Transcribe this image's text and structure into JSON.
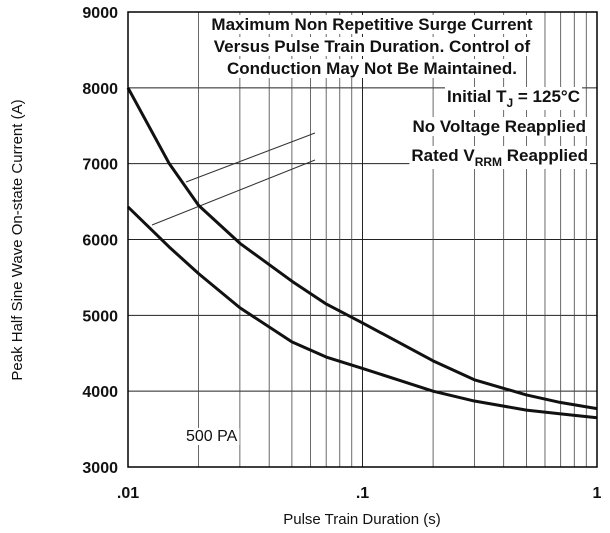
{
  "chart_data": {
    "type": "line",
    "title": [
      "Maximum Non Repetitive Surge Current",
      "Versus Pulse Train Duration. Control of",
      "Conduction May Not Be Maintained."
    ],
    "annotations": {
      "condition": [
        "Initial T",
        "J",
        " = 125°C"
      ],
      "label_upper": "No Voltage Reapplied",
      "label_lower": [
        "Rated V",
        "RRM",
        " Reapplied"
      ],
      "part": "500 PA"
    },
    "x_label": "Pulse Train Duration (s)",
    "y_label": "Peak Half Sine Wave On-state Current (A)",
    "x": [
      0.01,
      0.015,
      0.02,
      0.03,
      0.05,
      0.07,
      0.1,
      0.2,
      0.3,
      0.5,
      0.7,
      1
    ],
    "series": [
      {
        "color": "#111111",
        "values": [
          8000,
          7000,
          6450,
          5950,
          5450,
          5150,
          4900,
          4400,
          4150,
          3950,
          3850,
          3770
        ]
      },
      {
        "color": "#111111",
        "values": [
          6430,
          5900,
          5550,
          5100,
          4650,
          4450,
          4300,
          4000,
          3870,
          3750,
          3700,
          3650
        ]
      }
    ],
    "xscale": "log",
    "minor_grid": true,
    "grid": true,
    "xlim": [
      0.01,
      1
    ],
    "xticks": [
      {
        "value": 0.01,
        "label": ".01"
      },
      {
        "value": 0.1,
        "label": ".1"
      },
      1
    ],
    "ylim": [
      3000,
      9000
    ],
    "yticks": [
      3000,
      4000,
      5000,
      6000,
      7000,
      8000,
      9000
    ]
  }
}
